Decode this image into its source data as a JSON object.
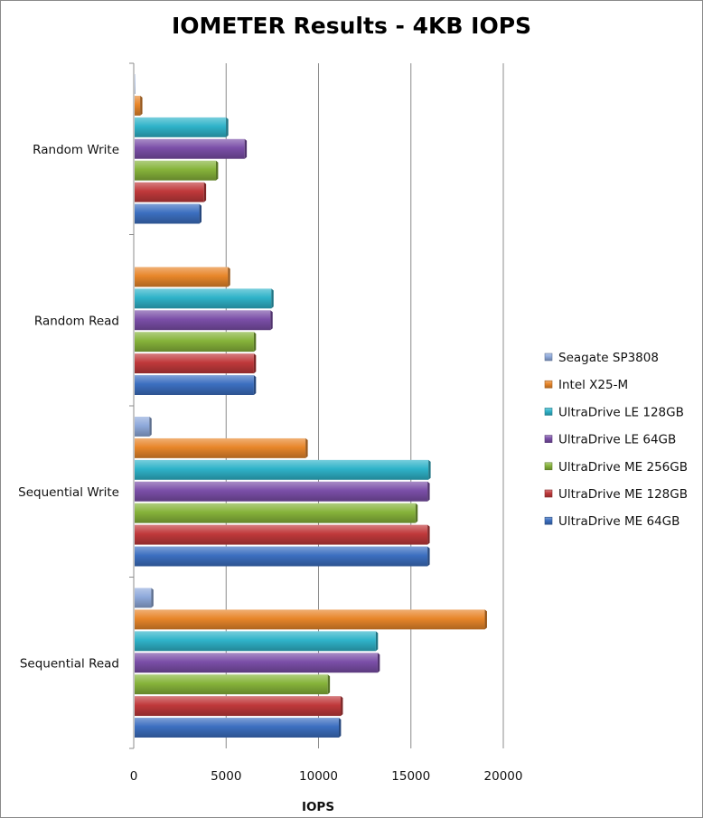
{
  "chart_data": {
    "type": "bar",
    "orientation": "horizontal",
    "title": "IOMETER Results - 4KB IOPS",
    "xlabel": "IOPS",
    "ylabel": "",
    "xlim": [
      0,
      20000
    ],
    "x_ticks": [
      "0",
      "5000",
      "10000",
      "15000",
      "20000"
    ],
    "grid": true,
    "legend_position": "right",
    "categories": [
      "Random Write",
      "Random Read",
      "Sequential Write",
      "Sequential Read"
    ],
    "series": [
      {
        "name": "Seagate SP3808",
        "color": "#8ea9db",
        "values": [
          80,
          30,
          850,
          950
        ]
      },
      {
        "name": "Intel X25-M",
        "color": "#e8862a",
        "values": [
          350,
          5100,
          9300,
          19000
        ]
      },
      {
        "name": "UltraDrive LE 128GB",
        "color": "#2fb3c9",
        "values": [
          5000,
          7450,
          15950,
          13100
        ]
      },
      {
        "name": "UltraDrive LE 64GB",
        "color": "#7b4fa8",
        "values": [
          6000,
          7400,
          15900,
          13200
        ]
      },
      {
        "name": "UltraDrive ME 256GB",
        "color": "#86b33a",
        "values": [
          4450,
          6500,
          15250,
          10500
        ]
      },
      {
        "name": "UltraDrive ME 128GB",
        "color": "#c0393b",
        "values": [
          3800,
          6500,
          15900,
          11200
        ]
      },
      {
        "name": "UltraDrive ME 64GB",
        "color": "#3c6fc0",
        "values": [
          3550,
          6500,
          15900,
          11100
        ]
      }
    ]
  }
}
